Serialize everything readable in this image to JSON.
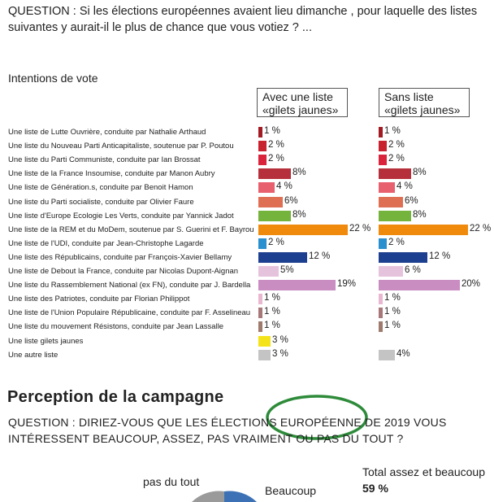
{
  "question1": "QUESTION : Si les élections européennes avaient lieu dimanche , pour laquelle des listes suivantes y aurait-il le plus de chance que vous votiez ? ...",
  "chart_data": {
    "type": "bar",
    "title": "Intentions de vote",
    "unit": "%",
    "categories": [
      "Une liste de Lutte Ouvrière, conduite par Nathalie Arthaud",
      "Une liste du Nouveau Parti Anticapitaliste, soutenue par P. Poutou",
      "Une liste du Parti Communiste, conduite par Ian Brossat",
      "Une liste de la France Insoumise, conduite par Manon Aubry",
      "Une liste de Génération.s, conduite par Benoit Hamon",
      "Une liste du Parti socialiste, conduite par Olivier Faure",
      "Une liste d'Europe Ecologie Les Verts, conduite par Yannick Jadot",
      "Une liste de la REM et du MoDem, soutenue par S. Guerini et F. Bayrou",
      "Une liste de l'UDI, conduite par Jean-Christophe Lagarde",
      "Une liste des Républicains, conduite par François-Xavier Bellamy",
      "Une liste de Debout la France, conduite par Nicolas Dupont-Aignan",
      "Une liste du Rassemblement National (ex FN), conduite par J. Bardella",
      "Une liste des Patriotes, conduite par Florian Philippot",
      "Une liste de l'Union Populaire Républicaine, conduite par F. Asselineau",
      "Une liste du mouvement Résistons, conduite par Jean Lassalle",
      "Une liste gilets jaunes",
      "Une autre liste"
    ],
    "colors": [
      "#a31b22",
      "#c8222e",
      "#d9243b",
      "#b5303a",
      "#e8606e",
      "#de6f52",
      "#74b33c",
      "#f08a0c",
      "#2a8fcf",
      "#1d3f8f",
      "#e6c3dd",
      "#c98dc2",
      "#e9b7cf",
      "#a87878",
      "#9e7b6c",
      "#f5e31a",
      "#c4c4c4"
    ],
    "series": [
      {
        "name": "Avec une liste «gilets jaunes»",
        "values": [
          1,
          2,
          2,
          8,
          4,
          6,
          8,
          22,
          2,
          12,
          5,
          19,
          1,
          1,
          1,
          3,
          3
        ],
        "labels": [
          "1 %",
          "2 %",
          "2 %",
          "8%",
          "4 %",
          "6%",
          "8%",
          "22 %",
          "2 %",
          "12 %",
          "5%",
          "19%",
          "1 %",
          "1 %",
          "1 %",
          "3 %",
          "3 %"
        ]
      },
      {
        "name": "Sans liste «gilets jaunes»",
        "values": [
          1,
          2,
          2,
          8,
          4,
          6,
          8,
          22,
          2,
          12,
          6,
          20,
          1,
          1,
          1,
          null,
          4
        ],
        "labels": [
          "1 %",
          "2 %",
          "2 %",
          "8%",
          "4 %",
          "6%",
          "8%",
          "22 %",
          "2 %",
          "12 %",
          "6 %",
          "20%",
          "1 %",
          "1 %",
          "1 %",
          "",
          "4%"
        ]
      }
    ]
  },
  "section_title": "Perception de la campagne",
  "question2": "QUESTION : DIRIEZ-VOUS QUE LES ÉLECTIONS EUROPÉENNE DE 2019 VOUS INTÉRESSENT BEAUCOUP, ASSEZ, PAS VRAIMENT OU PAS DU TOUT ?",
  "pie": {
    "label_left": "pas du tout",
    "label_right": "Beaucoup",
    "total_label": "Total assez et beaucoup",
    "total_value": "59 %",
    "colors": {
      "gray": "#9a9a9a",
      "blue": "#3c72b5",
      "ellipse": "#2e8b3a"
    }
  }
}
